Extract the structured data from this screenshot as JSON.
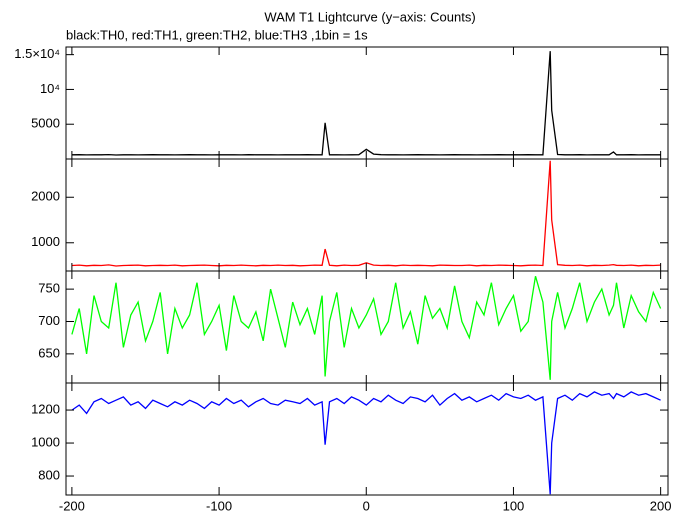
{
  "chart_data": [
    {
      "type": "line",
      "title": "WAM T1 Lightcurve (y−axis: Counts)",
      "subtitle": "black:TH0, red:TH1, green:TH2, blue:TH3 ,1bin = 1s",
      "x": [
        -200,
        -195,
        -190,
        -185,
        -180,
        -175,
        -170,
        -165,
        -160,
        -155,
        -150,
        -145,
        -140,
        -135,
        -130,
        -125,
        -120,
        -115,
        -110,
        -105,
        -100,
        -95,
        -90,
        -85,
        -80,
        -75,
        -70,
        -65,
        -60,
        -55,
        -50,
        -45,
        -40,
        -35,
        -30,
        -28,
        -25,
        -20,
        -15,
        -10,
        -5,
        0,
        5,
        10,
        15,
        20,
        25,
        30,
        35,
        40,
        45,
        50,
        55,
        60,
        65,
        70,
        75,
        80,
        85,
        90,
        95,
        100,
        105,
        110,
        115,
        120,
        125,
        126,
        130,
        135,
        140,
        145,
        150,
        155,
        160,
        165,
        168,
        170,
        175,
        180,
        185,
        190,
        195,
        200
      ],
      "xlim": [
        -204,
        205
      ],
      "xticks": [
        -200,
        -100,
        0,
        100,
        200
      ],
      "ylim": [
        0,
        16100
      ],
      "yticks": [
        {
          "value": 15000,
          "label": "1.5×10⁴"
        },
        {
          "value": 10000,
          "label": "10⁴"
        },
        5000
      ],
      "series": [
        {
          "color": "#000000",
          "values": [
            600,
            620,
            590,
            610,
            600,
            630,
            580,
            600,
            610,
            590,
            600,
            620,
            610,
            600,
            590,
            600,
            620,
            600,
            610,
            590,
            600,
            610,
            600,
            590,
            620,
            600,
            610,
            600,
            590,
            600,
            610,
            600,
            620,
            600,
            610,
            5200,
            600,
            610,
            590,
            600,
            620,
            1400,
            700,
            620,
            600,
            610,
            590,
            600,
            620,
            610,
            600,
            590,
            600,
            620,
            610,
            600,
            590,
            610,
            600,
            620,
            600,
            610,
            600,
            620,
            610,
            600,
            15500,
            7000,
            650,
            610,
            600,
            620,
            590,
            600,
            610,
            600,
            1000,
            610,
            600,
            620,
            590,
            600,
            610,
            600
          ]
        }
      ]
    },
    {
      "type": "line",
      "x": [
        -200,
        -195,
        -190,
        -185,
        -180,
        -175,
        -170,
        -165,
        -160,
        -155,
        -150,
        -145,
        -140,
        -135,
        -130,
        -125,
        -120,
        -115,
        -110,
        -105,
        -100,
        -95,
        -90,
        -85,
        -80,
        -75,
        -70,
        -65,
        -60,
        -55,
        -50,
        -45,
        -40,
        -35,
        -30,
        -28,
        -25,
        -20,
        -15,
        -10,
        -5,
        0,
        5,
        10,
        15,
        20,
        25,
        30,
        35,
        40,
        45,
        50,
        55,
        60,
        65,
        70,
        75,
        80,
        85,
        90,
        95,
        100,
        105,
        110,
        115,
        120,
        125,
        126,
        130,
        135,
        140,
        145,
        150,
        155,
        160,
        165,
        168,
        170,
        175,
        180,
        185,
        190,
        195,
        200
      ],
      "xlim": [
        -204,
        205
      ],
      "xticks": [
        -200,
        -100,
        0,
        100,
        200
      ],
      "ylim": [
        380,
        2840
      ],
      "yticks": [
        2000,
        1000
      ],
      "series": [
        {
          "color": "#ff0000",
          "values": [
            500,
            510,
            495,
            505,
            500,
            515,
            490,
            500,
            505,
            510,
            495,
            500,
            505,
            500,
            510,
            495,
            500,
            505,
            510,
            500,
            495,
            505,
            500,
            510,
            500,
            495,
            505,
            500,
            510,
            500,
            505,
            495,
            500,
            510,
            505,
            860,
            505,
            495,
            510,
            500,
            505,
            560,
            510,
            500,
            505,
            495,
            510,
            500,
            505,
            500,
            495,
            510,
            505,
            500,
            500,
            510,
            495,
            505,
            500,
            510,
            505,
            500,
            495,
            505,
            510,
            500,
            2800,
            1500,
            520,
            505,
            500,
            510,
            495,
            505,
            500,
            510,
            520,
            505,
            500,
            510,
            495,
            505,
            500,
            510
          ]
        }
      ]
    },
    {
      "type": "line",
      "x": [
        -200,
        -195,
        -190,
        -185,
        -180,
        -175,
        -170,
        -165,
        -160,
        -155,
        -150,
        -145,
        -140,
        -135,
        -130,
        -125,
        -120,
        -115,
        -110,
        -105,
        -100,
        -95,
        -90,
        -85,
        -80,
        -75,
        -70,
        -65,
        -60,
        -55,
        -50,
        -45,
        -40,
        -35,
        -30,
        -28,
        -25,
        -20,
        -15,
        -10,
        -5,
        0,
        5,
        10,
        15,
        20,
        25,
        30,
        35,
        40,
        45,
        50,
        55,
        60,
        65,
        70,
        75,
        80,
        85,
        90,
        95,
        100,
        105,
        110,
        115,
        120,
        125,
        126,
        130,
        135,
        140,
        145,
        150,
        155,
        160,
        165,
        168,
        170,
        175,
        180,
        185,
        190,
        195,
        200
      ],
      "xlim": [
        -204,
        205
      ],
      "xticks": [
        -200,
        -100,
        0,
        100,
        200
      ],
      "ylim": [
        605,
        778
      ],
      "yticks": [
        750,
        700,
        650
      ],
      "series": [
        {
          "color": "#00ff00",
          "values": [
            680,
            720,
            650,
            740,
            700,
            690,
            760,
            660,
            710,
            730,
            670,
            700,
            745,
            650,
            720,
            690,
            710,
            760,
            680,
            700,
            725,
            655,
            740,
            700,
            690,
            715,
            670,
            750,
            705,
            660,
            730,
            695,
            720,
            680,
            740,
            615,
            700,
            745,
            660,
            720,
            690,
            710,
            735,
            680,
            700,
            760,
            690,
            715,
            665,
            740,
            705,
            720,
            690,
            755,
            700,
            675,
            730,
            710,
            760,
            695,
            720,
            740,
            685,
            700,
            770,
            730,
            610,
            700,
            745,
            690,
            720,
            760,
            700,
            730,
            750,
            710,
            725,
            760,
            690,
            740,
            715,
            700,
            745,
            720
          ]
        }
      ]
    },
    {
      "type": "line",
      "x": [
        -200,
        -195,
        -190,
        -185,
        -180,
        -175,
        -170,
        -165,
        -160,
        -155,
        -150,
        -145,
        -140,
        -135,
        -130,
        -125,
        -120,
        -115,
        -110,
        -105,
        -100,
        -95,
        -90,
        -85,
        -80,
        -75,
        -70,
        -65,
        -60,
        -55,
        -50,
        -45,
        -40,
        -35,
        -30,
        -28,
        -25,
        -20,
        -15,
        -10,
        -5,
        0,
        5,
        10,
        15,
        20,
        25,
        30,
        35,
        40,
        45,
        50,
        55,
        60,
        65,
        70,
        75,
        80,
        85,
        90,
        95,
        100,
        105,
        110,
        115,
        120,
        125,
        126,
        130,
        135,
        140,
        145,
        150,
        155,
        160,
        165,
        168,
        170,
        175,
        180,
        185,
        190,
        195,
        200
      ],
      "xlim": [
        -204,
        205
      ],
      "xticks": [
        -200,
        -100,
        0,
        100,
        200
      ],
      "ylim": [
        685,
        1364
      ],
      "yticks": [
        1200,
        1000,
        800
      ],
      "series": [
        {
          "color": "#0000ff",
          "values": [
            1200,
            1230,
            1180,
            1250,
            1270,
            1240,
            1260,
            1280,
            1230,
            1250,
            1210,
            1260,
            1240,
            1220,
            1250,
            1230,
            1260,
            1240,
            1210,
            1250,
            1230,
            1270,
            1240,
            1260,
            1220,
            1250,
            1270,
            1240,
            1230,
            1260,
            1250,
            1240,
            1270,
            1230,
            1250,
            990,
            1250,
            1270,
            1240,
            1280,
            1260,
            1230,
            1270,
            1250,
            1290,
            1260,
            1240,
            1280,
            1270,
            1250,
            1290,
            1230,
            1270,
            1300,
            1260,
            1280,
            1250,
            1270,
            1290,
            1260,
            1300,
            1280,
            1270,
            1290,
            1260,
            1280,
            690,
            1000,
            1270,
            1290,
            1260,
            1300,
            1280,
            1310,
            1290,
            1300,
            1270,
            1300,
            1280,
            1310,
            1290,
            1300,
            1280,
            1260
          ]
        }
      ]
    }
  ]
}
